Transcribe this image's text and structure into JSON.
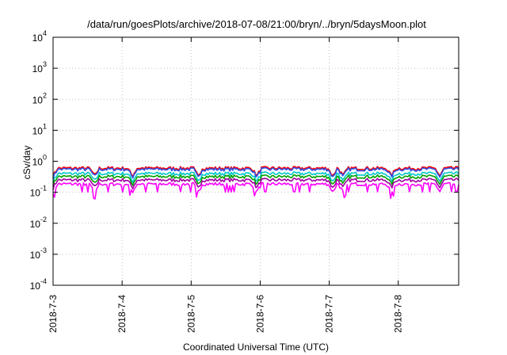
{
  "chart_data": {
    "type": "line",
    "title": "/data/run/goesPlots/archive/2018-07-08/21:00/bryn/../bryn/5daysMoon.plot",
    "xlabel": "Coordinated Universal Time (UTC)",
    "ylabel": "cSv/day",
    "yscale": "log",
    "ylim": [
      0.0001,
      10000
    ],
    "yticks": [
      {
        "base": "10",
        "exp": "4",
        "value": 10000
      },
      {
        "base": "10",
        "exp": "3",
        "value": 1000
      },
      {
        "base": "10",
        "exp": "2",
        "value": 100
      },
      {
        "base": "10",
        "exp": "1",
        "value": 10
      },
      {
        "base": "10",
        "exp": "0",
        "value": 1
      },
      {
        "base": "10",
        "exp": "-1",
        "value": 0.1
      },
      {
        "base": "10",
        "exp": "-2",
        "value": 0.01
      },
      {
        "base": "10",
        "exp": "-3",
        "value": 0.001
      },
      {
        "base": "10",
        "exp": "-4",
        "value": 0.0001
      }
    ],
    "xlim": [
      "2018-7-3",
      "2018-7-8 21:00"
    ],
    "xticks": [
      "2018-7-3",
      "2018-7-4",
      "2018-7-5",
      "2018-7-6",
      "2018-7-7",
      "2018-7-8"
    ],
    "grid": true,
    "series": [
      {
        "color": "#ff0000",
        "level": 0.6
      },
      {
        "color": "#3050e8",
        "level": 0.55
      },
      {
        "color": "#00c8c8",
        "level": 0.4
      },
      {
        "color": "#00a000",
        "level": 0.32
      },
      {
        "color": "#a000a0",
        "level": 0.27
      },
      {
        "color": "#ff00ff",
        "level": 0.22
      }
    ]
  }
}
